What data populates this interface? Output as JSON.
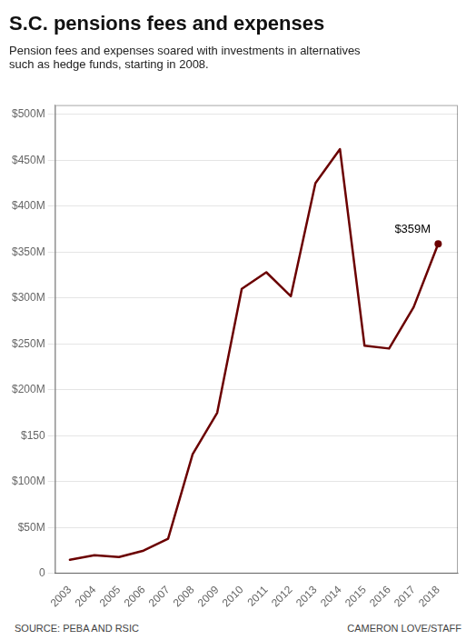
{
  "chart_data": {
    "type": "line",
    "title": "S.C. pensions fees and expenses",
    "subtitle": "Pension fees and expenses soared with investments in alternatives\nsuch as hedge funds, starting in 2008.",
    "source": [
      "SOURCE: PEBA AND RSIC",
      "CAMERON LOVE/STAFF"
    ],
    "x": [
      2003,
      2004,
      2005,
      2006,
      2007,
      2008,
      2009,
      2010,
      2011,
      2012,
      2013,
      2014,
      2015,
      2016,
      2017,
      2018
    ],
    "values": [
      15,
      20,
      18,
      25,
      38,
      130,
      175,
      310,
      328,
      302,
      425,
      462,
      248,
      245,
      290,
      359
    ],
    "color": "#6B0000",
    "xlim": [
      2002.4,
      2018.8
    ],
    "xticks": [
      2003,
      2004,
      2005,
      2006,
      2007,
      2008,
      2009,
      2010,
      2011,
      2012,
      2013,
      2014,
      2015,
      2016,
      2017,
      2018
    ],
    "ylim": [
      0,
      510
    ],
    "yticks": [
      0,
      {
        "value": 50,
        "label": "$50M"
      },
      {
        "value": 100,
        "label": "$100M"
      },
      {
        "value": 150,
        "label": "$150"
      },
      {
        "value": 200,
        "label": "$200M"
      },
      {
        "value": 250,
        "label": "$250M"
      },
      {
        "value": 300,
        "label": "$300M"
      },
      {
        "value": 350,
        "label": "$350M"
      },
      {
        "value": 400,
        "label": "$400M"
      },
      {
        "value": 450,
        "label": "$450M"
      },
      {
        "value": 500,
        "label": "$500M"
      }
    ],
    "grid": "y",
    "annotations": [
      {
        "text": "$359M",
        "x": 2018,
        "y": 359
      }
    ]
  }
}
